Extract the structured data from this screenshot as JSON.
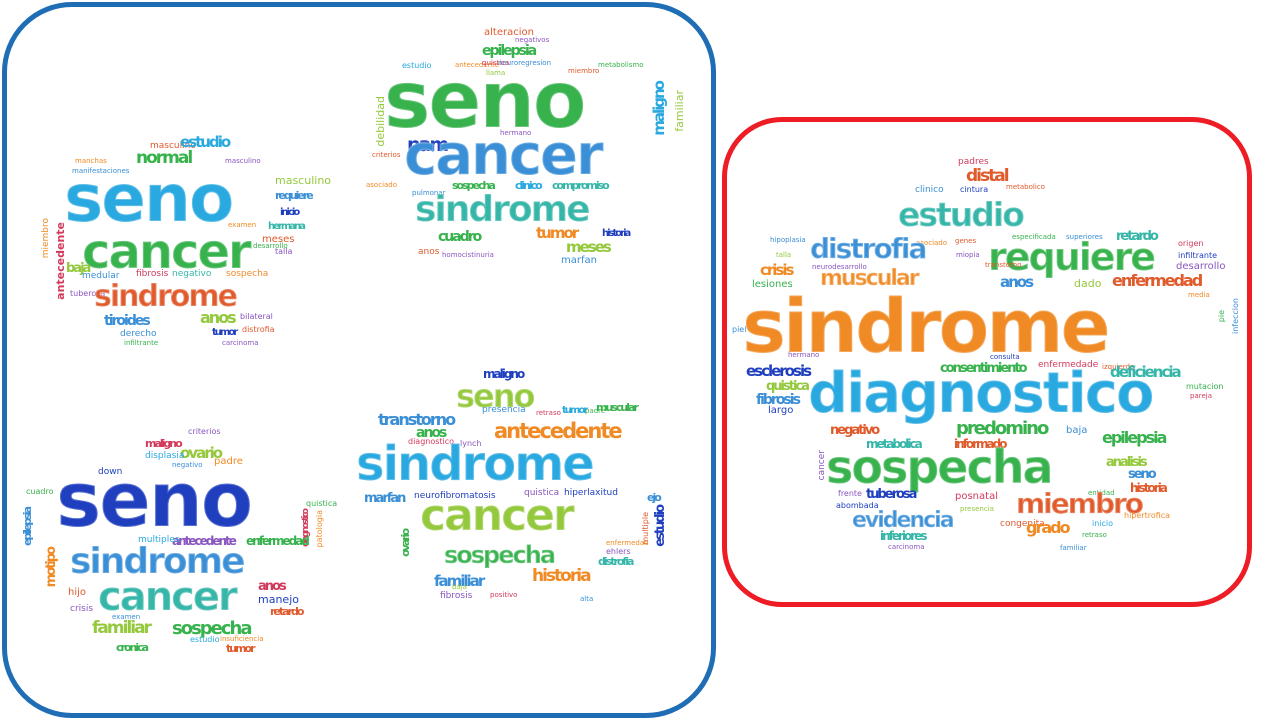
{
  "colors": {
    "left_border": "#1f6db5",
    "right_border": "#ee1c25",
    "palette": [
      "#2aa9e0",
      "#3a8fd6",
      "#37b24d",
      "#94c93d",
      "#e05a2c",
      "#f08a24",
      "#1f3fbf",
      "#35b6a8",
      "#8a56c0",
      "#d23a5b"
    ]
  },
  "clouds": {
    "top_left": {
      "words": {
        "seno": "seno",
        "cancer": "cancer",
        "sindrome": "sindrome",
        "normal": "normal",
        "estudio": "estudio",
        "tiroides": "tiroides",
        "anos": "anos",
        "antecedente": "antecedente",
        "tumor": "tumor",
        "hermana": "hermana",
        "meses": "meses",
        "inicio": "inicio",
        "requiere": "requiere",
        "masculino": "masculino",
        "manifestaciones": "manifestaciones",
        "derecho": "derecho",
        "distrofia": "distrofia",
        "carcinoma": "carcinoma",
        "fibrosis": "fibrosis",
        "sospecha": "sospecha",
        "negativo": "negativo",
        "examen": "examen",
        "talla": "talla",
        "baja": "baja",
        "miembro": "miembro",
        "medular": "medular",
        "desarrollo": "desarrollo",
        "bilateral": "bilateral",
        "tuberosa": "tuberosa",
        "infiltrante": "infiltrante",
        "manchas": "manchas",
        "largo": "largo",
        "leche": "leche"
      }
    },
    "top_right": {
      "words": {
        "seno": "seno",
        "cancer": "cancer",
        "sindrome": "sindrome",
        "epilepsia": "epilepsia",
        "alteracion": "alteracion",
        "maligno": "maligno",
        "familiar": "familiar",
        "cuadro": "cuadro",
        "tumor": "tumor",
        "meses": "meses",
        "historia": "historia",
        "pam": "pam",
        "marfan": "marfan",
        "sospecha": "sospecha",
        "clinico": "clinico",
        "compromiso": "compromiso",
        "anos": "anos",
        "estudio": "estudio",
        "antecedente": "antecedente",
        "metabolismo": "metabolismo",
        "criterios": "criterios",
        "asociado": "asociado",
        "pulmonar": "pulmonar",
        "debilidad": "debilidad",
        "hermano": "hermano",
        "homocistinuria": "homocistinuria",
        "miembro": "miembro",
        "neuroregresion": "neuroregresion",
        "quistica": "quistica",
        "negativos": "negativos",
        "llama": "llama"
      }
    },
    "bottom_left": {
      "words": {
        "seno": "seno",
        "sindrome": "sindrome",
        "cancer": "cancer",
        "familiar": "familiar",
        "sospecha": "sospecha",
        "ovario": "ovario",
        "antecedente": "antecedente",
        "enfermedad": "enfermedad",
        "anos": "anos",
        "manejo": "manejo",
        "retardo": "retardo",
        "tumor": "tumor",
        "cronica": "cronica",
        "maligno": "maligno",
        "displasia": "displasia",
        "epilepsia": "epilepsia",
        "motipo": "motipo",
        "hijo": "hijo",
        "crisis": "crisis",
        "examen": "examen",
        "estudio": "estudio",
        "multiples": "multiples",
        "down": "down",
        "negativo": "negativo",
        "padre": "padre",
        "diagnostico": "diagnostico",
        "patologia": "patologia",
        "insuficiencia": "insuficiencia",
        "cuadro": "cuadro",
        "quistica": "quistica",
        "criterios": "criterios",
        "fibrosis": "fibrosis"
      }
    },
    "bottom_middle": {
      "words": {
        "maligno": "maligno",
        "seno": "seno",
        "transtorno": "transtorno",
        "anos": "anos",
        "antecedente": "antecedente",
        "sindrome": "sindrome",
        "cancer": "cancer",
        "sospecha": "sospecha",
        "familiar": "familiar",
        "historia": "historia",
        "marfan": "marfan",
        "estudio": "estudio",
        "tumor": "tumor",
        "muscular": "muscular",
        "presencia": "presencia",
        "neurofibromatosis": "neurofibromatosis",
        "quistica": "quistica",
        "hiperlaxitud": "hiperlaxitud",
        "distrofia": "distrofia",
        "fibrosis": "fibrosis",
        "ovario": "ovario",
        "lynch": "lynch",
        "ejo": "ejo",
        "retraso": "retraso",
        "diagnostico": "diagnostico",
        "positivo": "positivo",
        "baja": "baja",
        "multiple": "multiple",
        "padre": "padre",
        "enfermedad": "enfermedad",
        "ehlers": "ehlers",
        "alta": "alta"
      }
    },
    "right": {
      "words": {
        "sindrome": "sindrome",
        "diagnostico": "diagnostico",
        "sospecha": "sospecha",
        "estudio": "estudio",
        "distal": "distal",
        "requiere": "requiere",
        "distrofia": "distrofia",
        "muscular": "muscular",
        "anos": "anos",
        "enfermedad": "enfermedad",
        "crisis": "crisis",
        "lesiones": "lesiones",
        "retardo": "retardo",
        "esclerosis": "esclerosis",
        "quistica": "quistica",
        "fibrosis": "fibrosis",
        "largo": "largo",
        "consentimiento": "consentimiento",
        "deficiencia": "deficiencia",
        "negativo": "negativo",
        "metabolica": "metabolica",
        "predomino": "predomino",
        "informado": "informado",
        "epilepsia": "epilepsia",
        "baja": "baja",
        "analisis": "analisis",
        "seno": "seno",
        "historia": "historia",
        "tuberosa": "tuberosa",
        "miembro": "miembro",
        "evidencia": "evidencia",
        "grado": "grado",
        "inferiores": "inferiores",
        "congenita": "congenita",
        "posnatal": "posnatal",
        "presencia": "presencia",
        "cancer": "cancer",
        "clinico": "clinico",
        "cintura": "cintura",
        "metabolico": "metabolico",
        "hipoplasia": "hipoplasia",
        "talla": "talla",
        "asociado": "asociado",
        "genes": "genes",
        "miopia": "miopia",
        "transtorno": "transtorno",
        "dado": "dado",
        "especificada": "especificada",
        "superiores": "superiores",
        "origen": "origen",
        "infiltrante": "infiltrante",
        "desarrollo": "desarrollo",
        "hermano": "hermano",
        "enfermedade": "enfermedade",
        "izquierdo": "izquierdo",
        "mutacion": "mutacion",
        "pareja": "pareja",
        "carcinoma": "carcinoma",
        "hipertrofica": "hipertrofica",
        "frente": "frente",
        "abombada": "abombada",
        "consulta": "consulta",
        "neurodesarrollo": "neurodesarrollo",
        "padres": "padres",
        "familiar": "familiar",
        "inicio": "inicio",
        "entidad": "entidad",
        "retraso": "retraso",
        "manifestaciones": "manifestaciones",
        "debilidad": "debilidad",
        "ocasional": "ocasional",
        "vision": "vision",
        "piel": "piel",
        "infeccion": "infeccion",
        "pie": "pie",
        "media": "media"
      }
    }
  }
}
